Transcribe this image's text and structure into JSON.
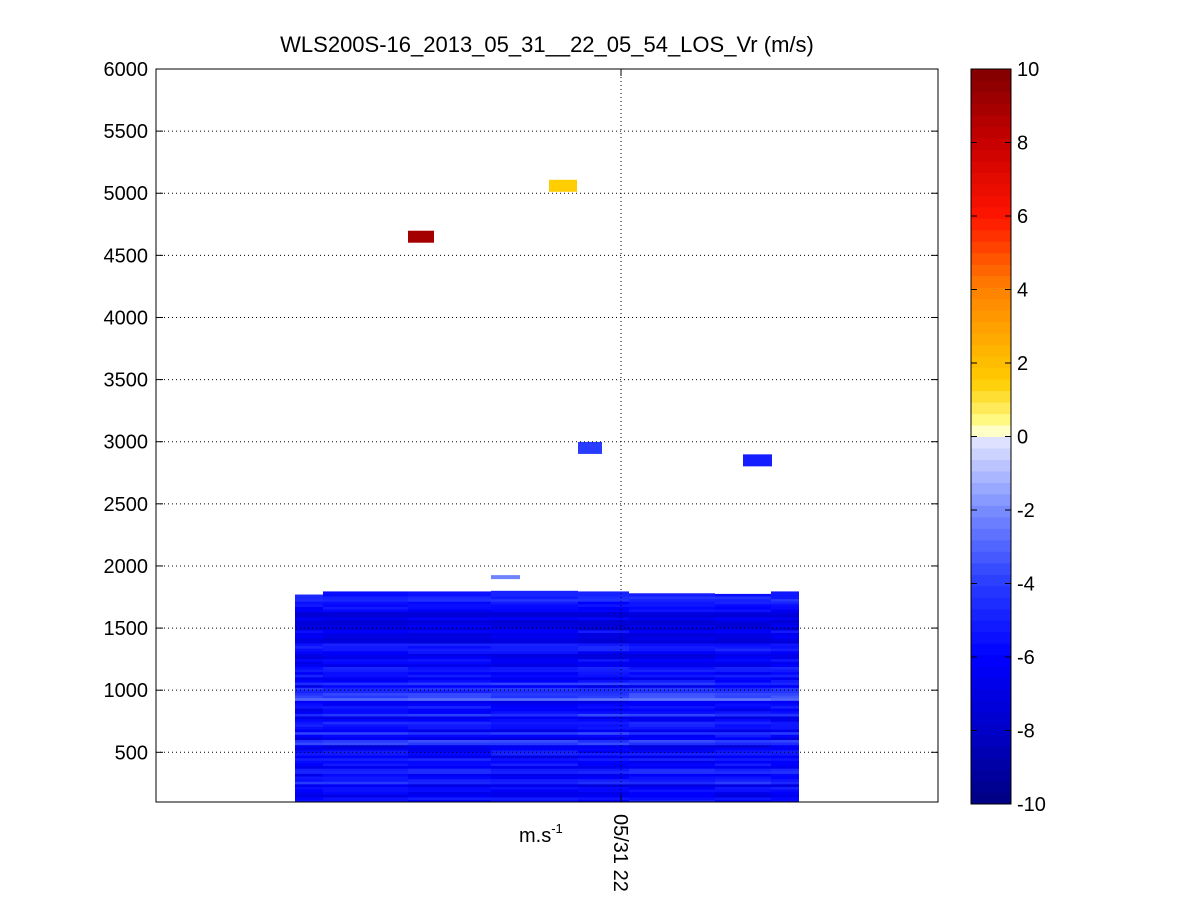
{
  "chart_data": {
    "type": "heatmap",
    "title": "WLS200S-16_2013_05_31__22_05_54_LOS_Vr (m/s)",
    "xlabel_unit": "m.s",
    "xlabel_unit_exp": "-1",
    "x_tick_labels": [
      "05/31 22"
    ],
    "ylim": [
      100,
      6000
    ],
    "yticks": [
      500,
      1000,
      1500,
      2000,
      2500,
      3000,
      3500,
      4000,
      4500,
      5000,
      5500,
      6000
    ],
    "grid": true,
    "colorbar": {
      "clim": [
        -10,
        10
      ],
      "ticks": [
        -10,
        -8,
        -6,
        -4,
        -2,
        0,
        2,
        4,
        6,
        8,
        10
      ]
    },
    "scan_block": {
      "altitude_range": [
        100,
        1780
      ],
      "mean_velocity": -5.5,
      "velocity_range": [
        -7.5,
        -2.5
      ]
    },
    "isolated_cells": [
      {
        "altitude": 4650,
        "velocity": 9
      },
      {
        "altitude": 5060,
        "velocity": 1.5
      },
      {
        "altitude": 2950,
        "velocity": -4
      },
      {
        "altitude": 2850,
        "velocity": -5
      },
      {
        "altitude": 1910,
        "velocity": -2.2
      }
    ]
  }
}
